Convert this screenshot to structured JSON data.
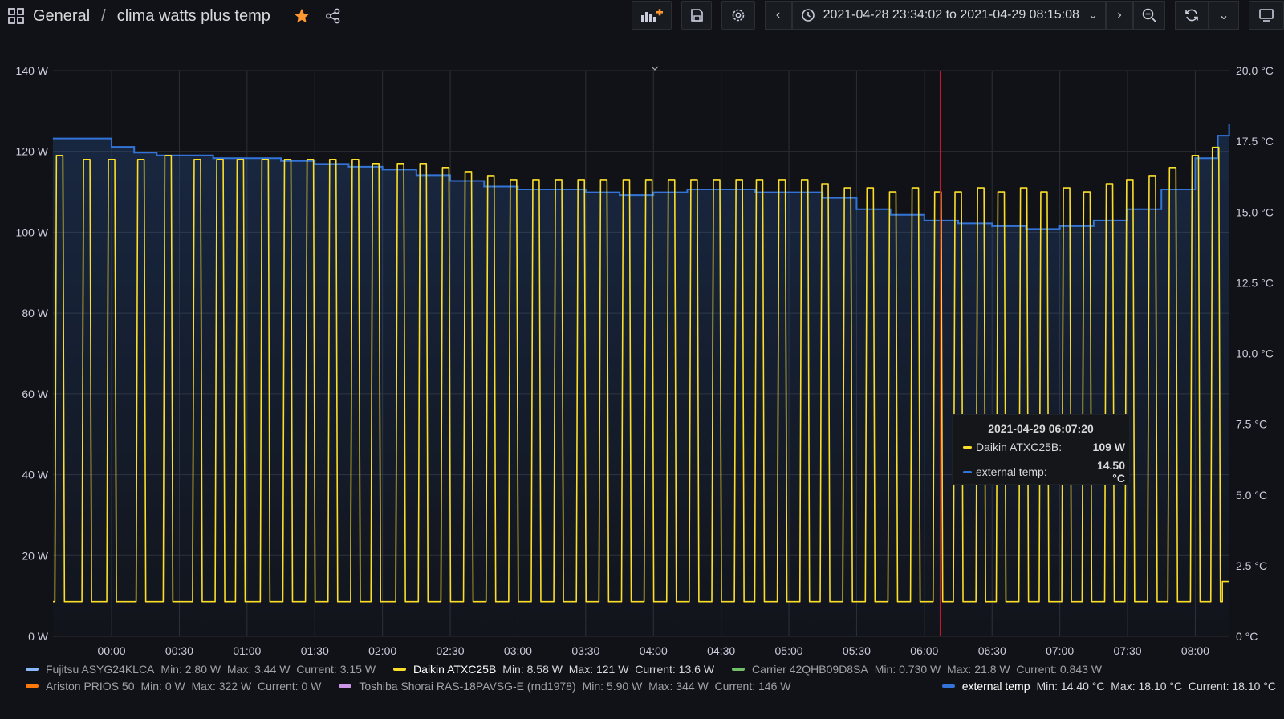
{
  "breadcrumb": {
    "folder": "General",
    "separator": "/",
    "dashboard": "clima watts plus temp"
  },
  "time_range": "2021-04-28 23:34:02 to 2021-04-29 08:15:08",
  "icons": [
    "apps-icon",
    "star-icon",
    "share-icon",
    "add-panel-icon",
    "save-icon",
    "settings-icon",
    "chevron-left-icon",
    "clock-icon",
    "chevron-down-icon",
    "chevron-right-icon",
    "zoom-out-icon",
    "refresh-icon",
    "chevron-down-icon",
    "tv-mode-icon"
  ],
  "colors": {
    "yellow": "#fade2a",
    "blue": "#3274d9",
    "purple": "#8ab8ff",
    "green": "#73bf69",
    "orange": "#ff780a",
    "lavender": "#ca95e5",
    "star": "#ff9830",
    "crosshair": "#c4162a"
  },
  "legend": {
    "items": [
      {
        "name": "Fujitsu ASYG24KLCA",
        "stats": "Min: 2.80 W  Max: 3.44 W  Current: 3.15 W",
        "color": "#8ab8ff"
      },
      {
        "name": "Daikin ATXC25B",
        "stats": "Min: 8.58 W  Max: 121 W  Current: 13.6 W",
        "color": "#fade2a"
      },
      {
        "name": "Carrier 42QHB09D8SA",
        "stats": "Min: 0.730 W  Max: 21.8 W  Current: 0.843 W",
        "color": "#73bf69"
      },
      {
        "name": "Ariston PRIOS 50",
        "stats": "Min: 0 W  Max: 322 W  Current: 0 W",
        "color": "#ff780a"
      },
      {
        "name": "Toshiba Shorai RAS-18PAVSG-E (rnd1978)",
        "stats": "Min: 5.90 W  Max: 344 W  Current: 146 W",
        "color": "#ca95e5"
      },
      {
        "name": "external temp",
        "stats": "Min: 14.40 °C  Max: 18.10 °C  Current: 18.10 °C",
        "color": "#3274d9"
      }
    ]
  },
  "tooltip": {
    "time": "2021-04-29 06:07:20",
    "rows": [
      {
        "name": "Daikin ATXC25B:",
        "value": "109 W",
        "color": "#fade2a"
      },
      {
        "name": "external temp:",
        "value": "14.50 °C",
        "color": "#3274d9"
      }
    ]
  },
  "chart_data": {
    "type": "line",
    "title": "",
    "x_ticks": [
      "00:00",
      "00:30",
      "01:00",
      "01:30",
      "02:00",
      "02:30",
      "03:00",
      "03:30",
      "04:00",
      "04:30",
      "05:00",
      "05:30",
      "06:00",
      "06:30",
      "07:00",
      "07:30",
      "08:00"
    ],
    "x_range": [
      "2021-04-28 23:34:02",
      "2021-04-29 08:15:08"
    ],
    "y_left": {
      "unit": "W",
      "range": [
        0,
        140
      ],
      "ticks": [
        "0 W",
        "20 W",
        "40 W",
        "60 W",
        "80 W",
        "100 W",
        "120 W",
        "140 W"
      ]
    },
    "y_right": {
      "unit": "°C",
      "range": [
        0,
        20
      ],
      "ticks": [
        "0 °C",
        "2.5 °C",
        "5.0 °C",
        "7.5 °C",
        "10.0 °C",
        "12.5 °C",
        "15.0 °C",
        "17.5 °C",
        "20.0 °C"
      ]
    },
    "grid": true,
    "legend_position": "bottom",
    "crosshair_time": "06:07",
    "series": [
      {
        "name": "Daikin ATXC25B",
        "axis": "left",
        "baseline": 8.6,
        "peak_times": [
          "23:37",
          "23:49",
          "00:00",
          "00:13",
          "00:25",
          "00:38",
          "00:48",
          "00:57",
          "01:08",
          "01:18",
          "01:28",
          "01:38",
          "01:48",
          "01:57",
          "02:08",
          "02:18",
          "02:28",
          "02:38",
          "02:48",
          "02:58",
          "03:08",
          "03:18",
          "03:28",
          "03:38",
          "03:48",
          "03:58",
          "04:08",
          "04:18",
          "04:28",
          "04:38",
          "04:47",
          "04:57",
          "05:07",
          "05:16",
          "05:26",
          "05:36",
          "05:46",
          "05:56",
          "06:06",
          "06:15",
          "06:25",
          "06:34",
          "06:44",
          "06:53",
          "07:03",
          "07:12",
          "07:22",
          "07:31",
          "07:41",
          "07:50",
          "08:00",
          "08:09"
        ],
        "peak_values": [
          119,
          118,
          118,
          118,
          119,
          118,
          118,
          118,
          118,
          118,
          118,
          118,
          118,
          117,
          117,
          117,
          116,
          115,
          114,
          113,
          113,
          113,
          113,
          113,
          113,
          113,
          113,
          113,
          113,
          113,
          113,
          113,
          113,
          112,
          111,
          111,
          110,
          111,
          110,
          110,
          111,
          110,
          111,
          110,
          111,
          110,
          112,
          113,
          114,
          116,
          119,
          121
        ],
        "end_value": 13.6
      },
      {
        "name": "external temp",
        "axis": "right",
        "times": [
          "23:34",
          "23:50",
          "00:00",
          "00:10",
          "00:20",
          "00:30",
          "00:45",
          "01:00",
          "01:15",
          "01:30",
          "01:45",
          "02:00",
          "02:15",
          "02:30",
          "02:45",
          "03:00",
          "03:15",
          "03:30",
          "03:45",
          "04:00",
          "04:15",
          "04:30",
          "04:45",
          "05:00",
          "05:15",
          "05:30",
          "05:45",
          "06:00",
          "06:15",
          "06:30",
          "06:45",
          "07:00",
          "07:15",
          "07:30",
          "07:45",
          "08:00",
          "08:10",
          "08:15"
        ],
        "values": [
          17.6,
          17.6,
          17.3,
          17.1,
          17.0,
          17.0,
          16.9,
          16.9,
          16.8,
          16.7,
          16.6,
          16.5,
          16.3,
          16.1,
          15.9,
          15.8,
          15.8,
          15.7,
          15.6,
          15.7,
          15.8,
          15.8,
          15.7,
          15.7,
          15.5,
          15.1,
          14.9,
          14.7,
          14.6,
          14.5,
          14.4,
          14.5,
          14.7,
          15.1,
          15.8,
          16.9,
          17.7,
          18.1
        ]
      }
    ]
  }
}
